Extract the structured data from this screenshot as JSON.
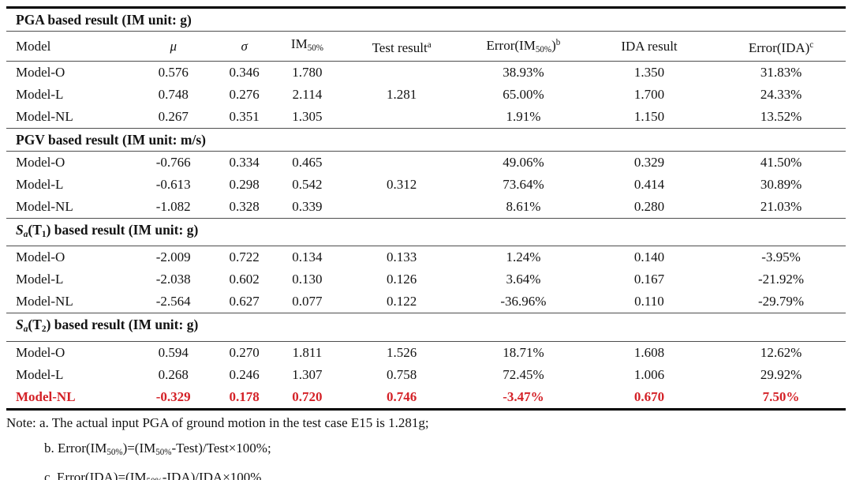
{
  "colors": {
    "highlight_red": "#d42127",
    "rule_thick": "#000000",
    "rule_thin": "#4d4d4d",
    "text": "#131313"
  },
  "table": {
    "header": [
      {
        "segs": [
          {
            "t": "Model"
          }
        ]
      },
      {
        "segs": [
          {
            "t": "μ",
            "s": "i"
          }
        ]
      },
      {
        "segs": [
          {
            "t": "σ",
            "s": "i"
          }
        ]
      },
      {
        "segs": [
          {
            "t": "IM"
          },
          {
            "t": "50%",
            "s": "sub"
          }
        ]
      },
      {
        "segs": [
          {
            "t": "Test result"
          },
          {
            "t": "a",
            "s": "sup"
          }
        ]
      },
      {
        "segs": [
          {
            "t": "Error(IM"
          },
          {
            "t": "50%",
            "s": "sub"
          },
          {
            "t": ")"
          },
          {
            "t": "b",
            "s": "sup"
          }
        ]
      },
      {
        "segs": [
          {
            "t": "IDA result"
          }
        ]
      },
      {
        "segs": [
          {
            "t": "Error(IDA)"
          },
          {
            "t": "c",
            "s": "sup"
          }
        ]
      }
    ],
    "sections": [
      {
        "title": [
          {
            "t": "PGA based result (IM unit: g)"
          }
        ],
        "merged_test": "1.281",
        "rows": [
          {
            "model": "Model-O",
            "mu": "0.576",
            "sigma": "0.346",
            "im50": "1.780",
            "test": "",
            "err_im": "38.93%",
            "ida": "1.350",
            "err_ida": "31.83%",
            "highlight": false
          },
          {
            "model": "Model-L",
            "mu": "0.748",
            "sigma": "0.276",
            "im50": "2.114",
            "test": "",
            "err_im": "65.00%",
            "ida": "1.700",
            "err_ida": "24.33%",
            "highlight": false
          },
          {
            "model": "Model-NL",
            "mu": "0.267",
            "sigma": "0.351",
            "im50": "1.305",
            "test": "",
            "err_im": "1.91%",
            "ida": "1.150",
            "err_ida": "13.52%",
            "highlight": false
          }
        ]
      },
      {
        "title": [
          {
            "t": "PGV based result (IM unit: m/s)"
          }
        ],
        "merged_test": "0.312",
        "rows": [
          {
            "model": "Model-O",
            "mu": "-0.766",
            "sigma": "0.334",
            "im50": "0.465",
            "test": "",
            "err_im": "49.06%",
            "ida": "0.329",
            "err_ida": "41.50%",
            "highlight": false
          },
          {
            "model": "Model-L",
            "mu": "-0.613",
            "sigma": "0.298",
            "im50": "0.542",
            "test": "",
            "err_im": "73.64%",
            "ida": "0.414",
            "err_ida": "30.89%",
            "highlight": false
          },
          {
            "model": "Model-NL",
            "mu": "-1.082",
            "sigma": "0.328",
            "im50": "0.339",
            "test": "",
            "err_im": "8.61%",
            "ida": "0.280",
            "err_ida": "21.03%",
            "highlight": false
          }
        ]
      },
      {
        "title": [
          {
            "t": "S",
            "s": "i"
          },
          {
            "t": "a",
            "s": "subi"
          },
          {
            "t": "(T"
          },
          {
            "t": "1",
            "s": "sub"
          },
          {
            "t": ") based result (IM unit: g)"
          }
        ],
        "merged_test": null,
        "rows": [
          {
            "model": "Model-O",
            "mu": "-2.009",
            "sigma": "0.722",
            "im50": "0.134",
            "test": "0.133",
            "err_im": "1.24%",
            "ida": "0.140",
            "err_ida": "-3.95%",
            "highlight": false
          },
          {
            "model": "Model-L",
            "mu": "-2.038",
            "sigma": "0.602",
            "im50": "0.130",
            "test": "0.126",
            "err_im": "3.64%",
            "ida": "0.167",
            "err_ida": "-21.92%",
            "highlight": false
          },
          {
            "model": "Model-NL",
            "mu": "-2.564",
            "sigma": "0.627",
            "im50": "0.077",
            "test": "0.122",
            "err_im": "-36.96%",
            "ida": "0.110",
            "err_ida": "-29.79%",
            "highlight": false
          }
        ]
      },
      {
        "title": [
          {
            "t": "S",
            "s": "i"
          },
          {
            "t": "a",
            "s": "subi"
          },
          {
            "t": "(T"
          },
          {
            "t": "2",
            "s": "sub"
          },
          {
            "t": ") based result (IM unit: g)"
          }
        ],
        "merged_test": null,
        "rows": [
          {
            "model": "Model-O",
            "mu": "0.594",
            "sigma": "0.270",
            "im50": "1.811",
            "test": "1.526",
            "err_im": "18.71%",
            "ida": "1.608",
            "err_ida": "12.62%",
            "highlight": false
          },
          {
            "model": "Model-L",
            "mu": "0.268",
            "sigma": "0.246",
            "im50": "1.307",
            "test": "0.758",
            "err_im": "72.45%",
            "ida": "1.006",
            "err_ida": "29.92%",
            "highlight": false
          },
          {
            "model": "Model-NL",
            "mu": "-0.329",
            "sigma": "0.178",
            "im50": "0.720",
            "test": "0.746",
            "err_im": "-3.47%",
            "ida": "0.670",
            "err_ida": "7.50%",
            "highlight": true
          }
        ]
      }
    ]
  },
  "notes": [
    {
      "indent": false,
      "segs": [
        {
          "t": "Note: a. The actual input PGA of ground motion in the test case E15 is 1.281g;"
        }
      ]
    },
    {
      "indent": true,
      "segs": [
        {
          "t": "b. Error(IM"
        },
        {
          "t": "50%",
          "s": "sub"
        },
        {
          "t": ")=(IM"
        },
        {
          "t": "50%",
          "s": "sub"
        },
        {
          "t": "-Test)/Test×100%;"
        }
      ]
    },
    {
      "indent": true,
      "segs": [
        {
          "t": "c. Error(IDA)=(IM"
        },
        {
          "t": "50%",
          "s": "sub"
        },
        {
          "t": "-IDA)/IDA×100%."
        }
      ]
    }
  ]
}
